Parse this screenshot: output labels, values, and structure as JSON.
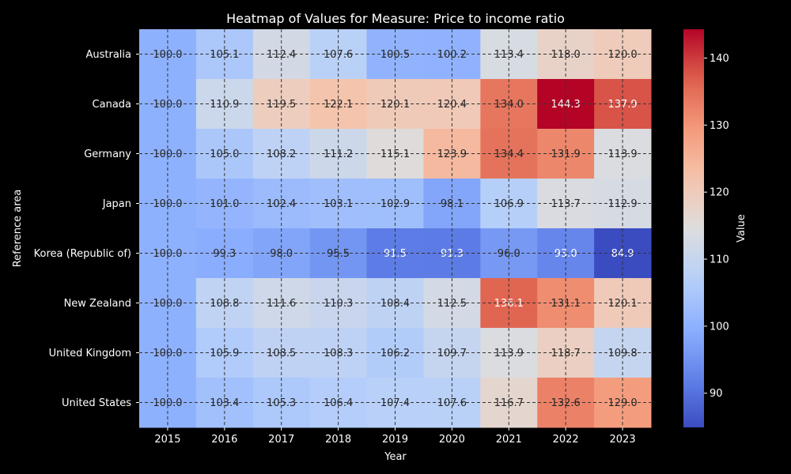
{
  "chart_data": {
    "type": "heatmap",
    "title": "Heatmap of Values for Measure: Price to income ratio",
    "xlabel": "Year",
    "ylabel": "Reference area",
    "colorbar_label": "Value",
    "x": [
      "2015",
      "2016",
      "2017",
      "2018",
      "2019",
      "2020",
      "2021",
      "2022",
      "2023"
    ],
    "y": [
      "Australia",
      "Canada",
      "Germany",
      "Japan",
      "Korea (Republic of)",
      "New Zealand",
      "United Kingdom",
      "United States"
    ],
    "values": [
      [
        100.0,
        105.1,
        112.4,
        107.6,
        100.5,
        100.2,
        113.4,
        118.0,
        120.0
      ],
      [
        100.0,
        110.9,
        119.5,
        122.1,
        120.1,
        120.4,
        134.0,
        144.3,
        137.9
      ],
      [
        100.0,
        105.0,
        108.2,
        111.2,
        115.1,
        123.9,
        134.4,
        131.9,
        113.9
      ],
      [
        100.0,
        101.0,
        102.4,
        103.1,
        102.9,
        98.1,
        106.9,
        113.7,
        112.9
      ],
      [
        100.0,
        99.3,
        98.0,
        95.5,
        91.5,
        91.3,
        96.0,
        93.0,
        84.9
      ],
      [
        100.0,
        108.8,
        111.6,
        110.3,
        108.4,
        112.5,
        136.1,
        131.1,
        120.1
      ],
      [
        100.0,
        105.9,
        108.5,
        108.3,
        106.2,
        109.7,
        113.9,
        118.7,
        109.8
      ],
      [
        100.0,
        103.4,
        105.3,
        106.4,
        107.4,
        107.6,
        116.7,
        132.6,
        129.0
      ]
    ],
    "vmin": 84.9,
    "vmax": 144.3,
    "colorbar_ticks": [
      90,
      100,
      110,
      120,
      130,
      140
    ],
    "colormap": "coolwarm",
    "grid": true,
    "grid_style": "dashed"
  }
}
